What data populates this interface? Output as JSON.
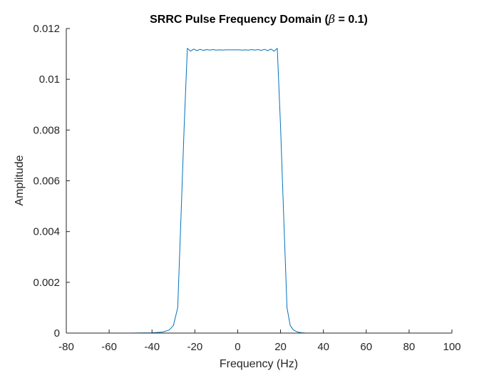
{
  "chart_data": {
    "type": "line",
    "title": "SRRC Pulse Frequency Domain (β = 0.1)",
    "title_prefix": "SRRC Pulse Frequency Domain (",
    "title_symbol": "β",
    "title_suffix": " = 0.1)",
    "xlabel": "Frequency (Hz)",
    "ylabel": "Amplitude",
    "xlim": [
      -80,
      100
    ],
    "ylim": [
      0,
      0.012
    ],
    "xticks": [
      -80,
      -60,
      -40,
      -20,
      0,
      20,
      40,
      60,
      80,
      100
    ],
    "xtick_labels": [
      "-80",
      "-60",
      "-40",
      "-20",
      "0",
      "20",
      "40",
      "60",
      "80",
      "100"
    ],
    "yticks": [
      0,
      0.002,
      0.004,
      0.006,
      0.008,
      0.01,
      0.012
    ],
    "ytick_labels": [
      "0",
      "0.002",
      "0.004",
      "0.006",
      "0.008",
      "0.01",
      "0.012"
    ],
    "grid": false,
    "line_color": "#0072BD",
    "series": [
      {
        "x": [
          -79,
          -70,
          -60,
          -50,
          -40,
          -35,
          -32,
          -30,
          -28,
          -26.5,
          -25,
          -23.5,
          -22,
          -20.5,
          -19,
          -17.5,
          -16,
          -14.5,
          -13,
          -11.5,
          -10,
          -8.5,
          -7,
          -5.5,
          -4,
          -2.5,
          -1,
          0.5,
          2,
          3.5,
          5,
          6.5,
          8,
          9.5,
          11,
          12.5,
          14,
          15.5,
          17,
          18.5,
          20,
          21.5,
          23,
          24.5,
          26,
          28,
          30,
          32,
          35,
          40,
          50,
          60,
          70,
          80,
          85
        ],
        "y": [
          0,
          0,
          0,
          0,
          1e-05,
          4e-05,
          0.00012,
          0.0003,
          0.001,
          0.0045,
          0.0081,
          0.01122,
          0.01111,
          0.01119,
          0.01113,
          0.01118,
          0.01114,
          0.01117,
          0.01115,
          0.01117,
          0.01115,
          0.01116,
          0.01115,
          0.01116,
          0.01116,
          0.01116,
          0.01116,
          0.01116,
          0.01115,
          0.01116,
          0.01115,
          0.01117,
          0.01115,
          0.01117,
          0.01114,
          0.01118,
          0.01113,
          0.01119,
          0.01111,
          0.01122,
          0.0081,
          0.0045,
          0.001,
          0.0003,
          0.00012,
          4e-05,
          1e-05,
          0,
          0,
          0,
          0,
          0,
          0,
          0,
          0
        ]
      }
    ]
  }
}
